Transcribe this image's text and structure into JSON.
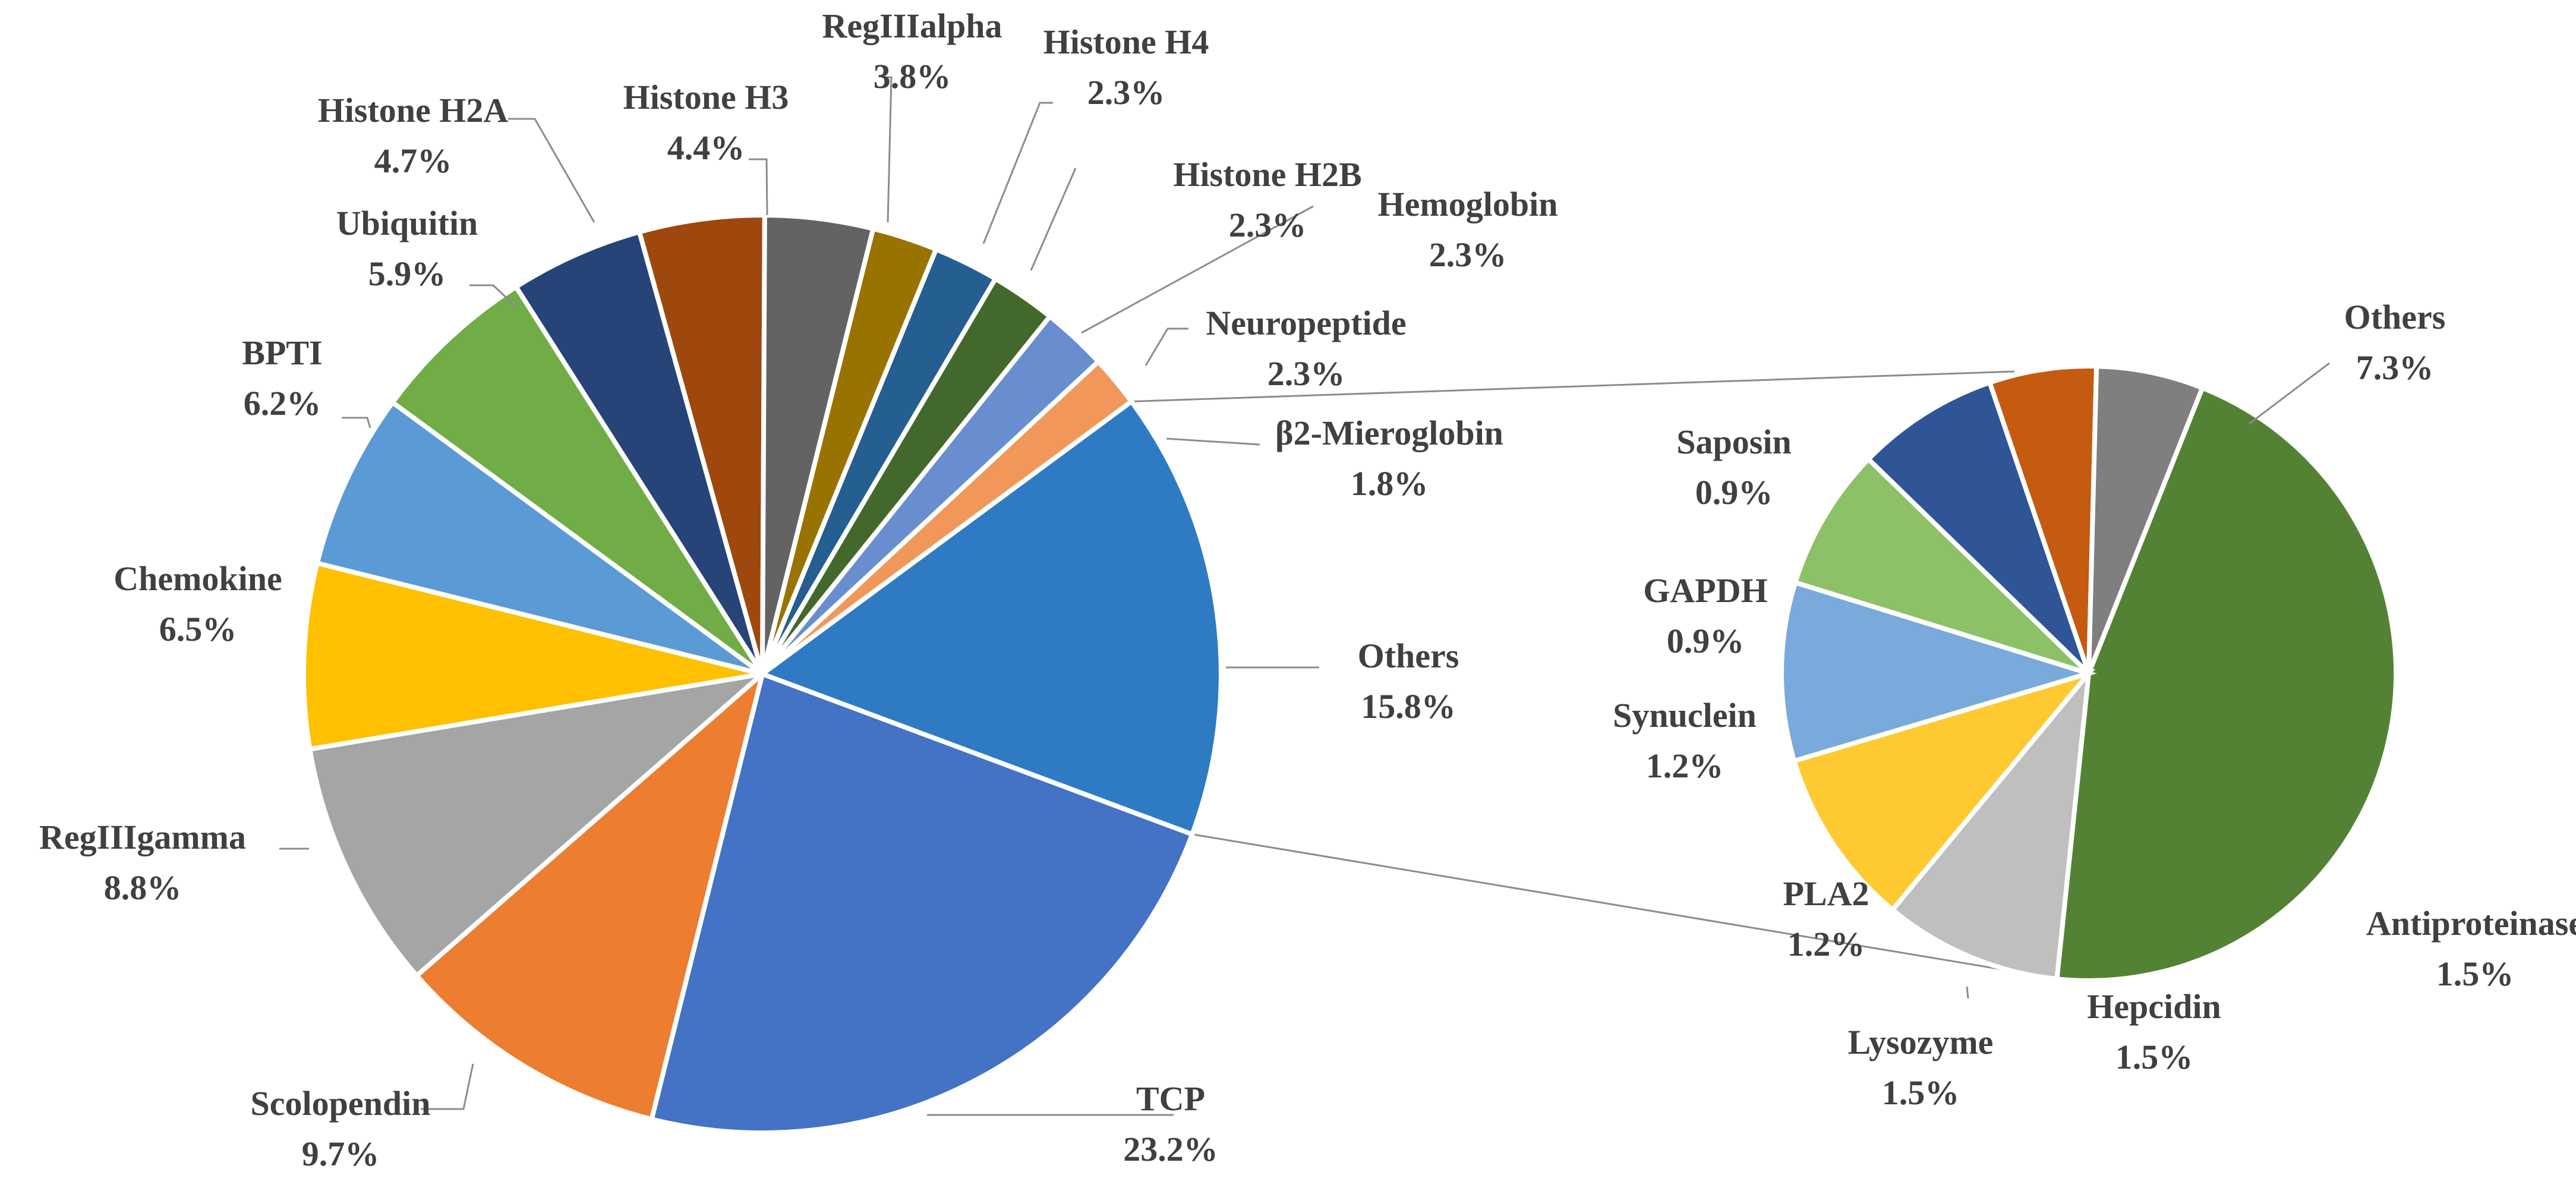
{
  "chart_data": {
    "type": "pie",
    "subtype": "bar-of-pie",
    "title": "",
    "main_pie": [
      {
        "label": "TCP",
        "value": 23.2,
        "pct": "23.2%",
        "color": "#4472C4"
      },
      {
        "label": "Scolopendin",
        "value": 9.7,
        "pct": "9.7%",
        "color": "#ED7D31"
      },
      {
        "label": "RegIIIgamma",
        "value": 8.8,
        "pct": "8.8%",
        "color": "#A5A5A5"
      },
      {
        "label": "Chemokine",
        "value": 6.5,
        "pct": "6.5%",
        "color": "#FFC000"
      },
      {
        "label": "BPTI",
        "value": 6.2,
        "pct": "6.2%",
        "color": "#5B9BD5"
      },
      {
        "label": "Ubiquitin",
        "value": 5.9,
        "pct": "5.9%",
        "color": "#70AD47"
      },
      {
        "label": "Histone H2A",
        "value": 4.7,
        "pct": "4.7%",
        "color": "#264478"
      },
      {
        "label": "Histone H3",
        "value": 4.4,
        "pct": "4.4%",
        "color": "#9E480E"
      },
      {
        "label": "RegIIIalpha",
        "value": 3.8,
        "pct": "3.8%",
        "color": "#636363"
      },
      {
        "label": "Histone H4",
        "value": 2.3,
        "pct": "2.3%",
        "color": "#997300"
      },
      {
        "label": "Histone H2B",
        "value": 2.3,
        "pct": "2.3%",
        "color": "#255E91"
      },
      {
        "label": "Hemoglobin",
        "value": 2.3,
        "pct": "2.3%",
        "color": "#43682B"
      },
      {
        "label": "Neuropeptide",
        "value": 2.3,
        "pct": "2.3%",
        "color": "#698ED0"
      },
      {
        "label": "β2-Mieroglobin",
        "value": 1.8,
        "pct": "1.8%",
        "color": "#F1975A"
      },
      {
        "label": "Others",
        "value": 15.8,
        "pct": "15.8%",
        "color": "#2E7BC4"
      }
    ],
    "secondary_pie": [
      {
        "label": "Others",
        "value": 7.3,
        "pct": "7.3%",
        "color": "#548235"
      },
      {
        "label": "Antiproteinase",
        "value": 1.5,
        "pct": "1.5%",
        "color": "#BFBFBF"
      },
      {
        "label": "Hepcidin",
        "value": 1.5,
        "pct": "1.5%",
        "color": "#FFC931"
      },
      {
        "label": "Lysozyme",
        "value": 1.5,
        "pct": "1.5%",
        "color": "#7AAADC"
      },
      {
        "label": "PLA2",
        "value": 1.2,
        "pct": "1.2%",
        "color": "#8CC168"
      },
      {
        "label": "Synuclein",
        "value": 1.2,
        "pct": "1.2%",
        "color": "#2F5597"
      },
      {
        "label": "GAPDH",
        "value": 0.9,
        "pct": "0.9%",
        "color": "#C55A11"
      },
      {
        "label": "Saposin",
        "value": 0.9,
        "pct": "0.9%",
        "color": "#7F7F7F"
      }
    ],
    "secondary_source": "Others",
    "legend": "none",
    "labels": "outside with leader lines"
  }
}
